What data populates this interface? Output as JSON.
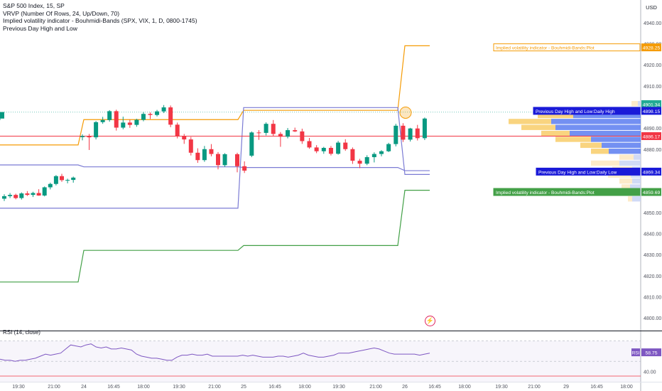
{
  "legend": {
    "title": "S&P 500 Index, 15, SP",
    "line1": "VRVP (Number Of Rows, 24, Up/Down, 70)",
    "line2": "Implied volatility indicator - Bouhmidi-Bands (SPX, VIX, 1, D, 0800-1745)",
    "line3": "Previous Day High and Low"
  },
  "currency": "USD",
  "rsi_label": "RSI (14, close)",
  "flash_icon": "lightning-icon",
  "chart_data": {
    "type": "candlestick",
    "price_axis": {
      "ylim": [
        4796,
        4947
      ],
      "ticks": [
        "4940.00",
        "4930.00",
        "4920.00",
        "4910.00",
        "4900.00",
        "4890.00",
        "4880.00",
        "4870.00",
        "4860.00",
        "4850.00",
        "4840.00",
        "4830.00",
        "4820.00",
        "4810.00",
        "4800.00"
      ]
    },
    "time_axis": {
      "ticks": [
        "19:30",
        "21:00",
        "24",
        "16:45",
        "18:00",
        "19:30",
        "21:00",
        "25",
        "16:45",
        "18:00",
        "19:30",
        "21:00",
        "26",
        "16:45",
        "18:00",
        "19:30",
        "21:00",
        "29",
        "16:45",
        "18:00"
      ]
    },
    "candles": [
      [
        4856.5,
        4858.6,
        4855.4,
        4857.7
      ],
      [
        4857.7,
        4859.2,
        4856.8,
        4858.3
      ],
      [
        4858.3,
        4858.9,
        4856.2,
        4856.8
      ],
      [
        4856.8,
        4859.5,
        4856.1,
        4859.0
      ],
      [
        4859.0,
        4860.1,
        4857.8,
        4858.3
      ],
      [
        4858.3,
        4859.8,
        4857.3,
        4859.2
      ],
      [
        4859.2,
        4861.0,
        4857.9,
        4858.0
      ],
      [
        4858.0,
        4862.3,
        4857.6,
        4861.9
      ],
      [
        4861.9,
        4864.1,
        4860.9,
        4863.5
      ],
      [
        4863.5,
        4867.7,
        4862.8,
        4867.2
      ],
      [
        4867.2,
        4868.3,
        4864.5,
        4865.3
      ],
      [
        4865.3,
        4866.0,
        4863.8,
        4865.4
      ],
      [
        4865.4,
        4867.0,
        4864.1,
        4866.5
      ],
      [
        4885.7,
        4887.0,
        4884.2,
        4886.2
      ],
      [
        4886.2,
        4887.2,
        4879.6,
        4885.6
      ],
      [
        4885.6,
        4893.3,
        4884.6,
        4892.8
      ],
      [
        4892.8,
        4895.3,
        4892.0,
        4893.8
      ],
      [
        4893.8,
        4898.5,
        4893.0,
        4898.0
      ],
      [
        4898.0,
        4898.7,
        4888.8,
        4890.2
      ],
      [
        4890.2,
        4895.4,
        4889.4,
        4892.6
      ],
      [
        4892.6,
        4894.0,
        4890.1,
        4891.5
      ],
      [
        4891.5,
        4894.4,
        4890.6,
        4893.9
      ],
      [
        4893.9,
        4897.6,
        4893.2,
        4896.7
      ],
      [
        4896.7,
        4897.4,
        4894.3,
        4896.2
      ],
      [
        4896.2,
        4898.6,
        4895.5,
        4897.9
      ],
      [
        4897.9,
        4900.9,
        4897.1,
        4899.8
      ],
      [
        4899.8,
        4900.7,
        4890.4,
        4891.6
      ],
      [
        4891.6,
        4892.6,
        4885.1,
        4886.3
      ],
      [
        4886.3,
        4887.2,
        4882.5,
        4884.6
      ],
      [
        4884.6,
        4885.8,
        4877.0,
        4878.3
      ],
      [
        4878.3,
        4880.4,
        4873.5,
        4874.8
      ],
      [
        4874.8,
        4881.5,
        4874.0,
        4880.0
      ],
      [
        4880.0,
        4882.4,
        4876.6,
        4877.7
      ],
      [
        4877.7,
        4878.6,
        4870.4,
        4872.4
      ],
      [
        4872.4,
        4878.1,
        4871.6,
        4877.6
      ],
      [
        4877.6,
        4878.3,
        4869.0,
        4871.9
      ],
      [
        4871.9,
        4874.2,
        4868.7,
        4869.8
      ],
      [
        4876.9,
        4888.4,
        4876.2,
        4887.9
      ],
      [
        4887.9,
        4889.0,
        4884.4,
        4887.7
      ],
      [
        4887.7,
        4892.7,
        4886.5,
        4892.0
      ],
      [
        4892.0,
        4893.8,
        4886.1,
        4887.2
      ],
      [
        4887.2,
        4888.1,
        4881.1,
        4885.9
      ],
      [
        4885.9,
        4890.0,
        4885.1,
        4889.0
      ],
      [
        4889.0,
        4890.2,
        4888.1,
        4888.4
      ],
      [
        4888.4,
        4889.7,
        4882.5,
        4883.8
      ],
      [
        4883.8,
        4885.3,
        4880.2,
        4880.8
      ],
      [
        4880.8,
        4881.9,
        4878.1,
        4879.0
      ],
      [
        4879.0,
        4881.1,
        4877.8,
        4880.6
      ],
      [
        4880.6,
        4881.5,
        4877.0,
        4877.8
      ],
      [
        4877.8,
        4883.9,
        4877.4,
        4883.1
      ],
      [
        4883.1,
        4884.7,
        4879.2,
        4880.0
      ],
      [
        4880.0,
        4880.8,
        4873.0,
        4874.5
      ],
      [
        4874.5,
        4875.4,
        4871.0,
        4873.1
      ],
      [
        4873.1,
        4877.1,
        4872.4,
        4876.2
      ],
      [
        4876.2,
        4878.5,
        4873.7,
        4877.7
      ],
      [
        4877.7,
        4879.5,
        4876.6,
        4879.0
      ],
      [
        4879.0,
        4883.0,
        4878.6,
        4882.4
      ],
      [
        4882.4,
        4892.0,
        4881.3,
        4891.1
      ],
      [
        4891.1,
        4892.3,
        4883.4,
        4884.5
      ],
      [
        4884.5,
        4890.1,
        4883.6,
        4889.8
      ],
      [
        4889.8,
        4891.5,
        4884.1,
        4885.2
      ],
      [
        4885.2,
        4895.0,
        4884.3,
        4894.5
      ],
      [
        4894.5,
        4897.6,
        4893.8,
        4897.6
      ]
    ],
    "vrvp_levels": [
      {
        "up": 9,
        "dn": 4
      },
      {
        "up": 38,
        "dn": 55
      },
      {
        "up": 50,
        "dn": 95
      },
      {
        "up": 60,
        "dn": 126
      },
      {
        "up": 48,
        "dn": 120
      },
      {
        "up": 40,
        "dn": 100
      },
      {
        "up": 50,
        "dn": 70
      },
      {
        "up": 30,
        "dn": 55
      },
      {
        "up": 25,
        "dn": 45
      },
      {
        "up": 20,
        "dn": 10
      },
      {
        "up": 40,
        "dn": 30
      },
      {
        "up": 28,
        "dn": 12
      },
      {
        "up": 32,
        "dn": 14
      },
      {
        "up": 18,
        "dn": 12
      },
      {
        "up": 12,
        "dn": 15
      },
      {
        "up": 10,
        "dn": 10
      },
      {
        "up": 6,
        "dn": 12
      }
    ],
    "lines": [
      {
        "name": "Implied volatility indicator - Bouhmidi-Bands:Plot",
        "color": "#f59b05",
        "kind": "upper band"
      },
      {
        "name": "Implied volatility indicator - Bouhmidi-Bands:Plot",
        "color": "#43a047",
        "kind": "lower band"
      },
      {
        "name": "Previous Day High and Low:Daily High",
        "color": "#7b7bd4",
        "kind": "daily high"
      },
      {
        "name": "Previous Day High and Low:Daily Low",
        "color": "#7b7bd4",
        "kind": "daily low"
      }
    ],
    "price_labels": [
      {
        "text": "Implied volatility indicator - Bouhmidi-Bands:Plot",
        "value": "4928.25",
        "color": "#f59b05"
      },
      {
        "text": "",
        "value": "4901.34",
        "color": "#22ab94"
      },
      {
        "text": "Previous Day High and Low:Daily High",
        "value": "4898.15",
        "color": "#1a1ad8"
      },
      {
        "text": "",
        "value": "4886.17",
        "color": "#f23645"
      },
      {
        "text": "Previous Day High and Low:Daily Low",
        "value": "4869.34",
        "color": "#1a1ad8"
      },
      {
        "text": "Implied volatility indicator - Bouhmidi-Bands:Plot",
        "value": "4859.69",
        "color": "#43a047"
      }
    ],
    "rsi": {
      "label": "RSI (14, close)",
      "value": "58.75",
      "ticks": [
        "40.00"
      ],
      "values": [
        52,
        51,
        51,
        50,
        51,
        51,
        52,
        53,
        55,
        57,
        56,
        57,
        58,
        62,
        66,
        65,
        64,
        66,
        67,
        64,
        63,
        64,
        62,
        62,
        63,
        62,
        61,
        57,
        55,
        54,
        53,
        53,
        52,
        51,
        51,
        54,
        56,
        56,
        57,
        56,
        56,
        57,
        55,
        55,
        55,
        55,
        55,
        55,
        56,
        55,
        56,
        55,
        54,
        54,
        54,
        55,
        55,
        54,
        55,
        56,
        58,
        56,
        55,
        54,
        54,
        55,
        56,
        58,
        58,
        58,
        59,
        60,
        61,
        62,
        63,
        62,
        60,
        58,
        57,
        57,
        57,
        57,
        57,
        56,
        57,
        58
      ]
    }
  }
}
